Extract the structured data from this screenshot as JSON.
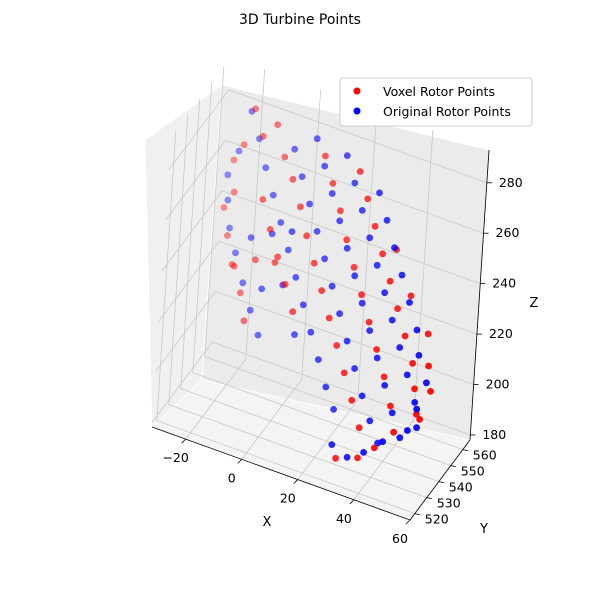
{
  "chart_data": {
    "type": "scatter",
    "projection": "3d",
    "title": "3D Turbine Points",
    "xlabel": "X",
    "ylabel": "Y",
    "zlabel": "Z",
    "x_ticks": [
      -20,
      0,
      20,
      40,
      60
    ],
    "y_ticks": [
      520,
      530,
      540,
      550,
      560
    ],
    "z_ticks": [
      180,
      200,
      220,
      240,
      260,
      280
    ],
    "xlim": [
      -32,
      60
    ],
    "ylim": [
      516,
      566
    ],
    "zlim": [
      178,
      293
    ],
    "grid": true,
    "legend_position": "upper-right",
    "series": [
      {
        "name": "Voxel Rotor Points",
        "color": "#ff0000",
        "points": [
          [
            -18,
            555,
            285
          ],
          [
            -14,
            553,
            277
          ],
          [
            -22,
            557,
            268
          ],
          [
            -26,
            559,
            259
          ],
          [
            -24,
            556,
            249
          ],
          [
            -28,
            558,
            240
          ],
          [
            -25,
            555,
            232
          ],
          [
            -22,
            553,
            223
          ],
          [
            -18,
            552,
            214
          ],
          [
            -15,
            549,
            206
          ],
          [
            -10,
            546,
            258
          ],
          [
            -6,
            544,
            249
          ],
          [
            -2,
            542,
            241
          ],
          [
            2,
            540,
            233
          ],
          [
            6,
            538,
            225
          ],
          [
            0,
            546,
            270
          ],
          [
            4,
            544,
            262
          ],
          [
            8,
            541,
            254
          ],
          [
            12,
            539,
            246
          ],
          [
            16,
            537,
            238
          ],
          [
            20,
            535,
            230
          ],
          [
            24,
            533,
            222
          ],
          [
            28,
            531,
            214
          ],
          [
            32,
            529,
            206
          ],
          [
            36,
            527,
            198
          ],
          [
            10,
            548,
            282
          ],
          [
            14,
            546,
            274
          ],
          [
            18,
            544,
            266
          ],
          [
            22,
            541,
            258
          ],
          [
            26,
            539,
            250
          ],
          [
            30,
            537,
            242
          ],
          [
            34,
            535,
            234
          ],
          [
            38,
            533,
            226
          ],
          [
            42,
            531,
            218
          ],
          [
            46,
            528,
            210
          ],
          [
            24,
            544,
            284
          ],
          [
            28,
            542,
            276
          ],
          [
            32,
            540,
            268
          ],
          [
            36,
            538,
            260
          ],
          [
            40,
            536,
            252
          ],
          [
            44,
            534,
            244
          ],
          [
            48,
            532,
            236
          ],
          [
            52,
            530,
            228
          ],
          [
            54,
            528,
            220
          ],
          [
            56,
            526,
            212
          ],
          [
            40,
            540,
            262
          ],
          [
            48,
            535,
            250
          ],
          [
            56,
            532,
            240
          ],
          [
            58,
            529,
            230
          ],
          [
            60,
            527,
            222
          ],
          [
            58,
            524,
            212
          ],
          [
            50,
            522,
            205
          ],
          [
            44,
            521,
            197
          ],
          [
            38,
            522,
            190
          ],
          [
            30,
            523,
            186
          ],
          [
            -6,
            553,
            272
          ],
          [
            -10,
            555,
            282
          ],
          [
            -20,
            550,
            225
          ],
          [
            -12,
            548,
            232
          ],
          [
            -4,
            545,
            236
          ]
        ]
      },
      {
        "name": "Original Rotor Points",
        "color": "#0000ff",
        "points": [
          [
            -20,
            557,
            282
          ],
          [
            -16,
            555,
            274
          ],
          [
            -24,
            558,
            264
          ],
          [
            -27,
            557,
            254
          ],
          [
            -26,
            556,
            245
          ],
          [
            -24,
            554,
            236
          ],
          [
            -21,
            553,
            228
          ],
          [
            -17,
            551,
            219
          ],
          [
            -13,
            549,
            211
          ],
          [
            -9,
            547,
            204
          ],
          [
            -12,
            552,
            266
          ],
          [
            -8,
            550,
            258
          ],
          [
            -4,
            548,
            250
          ],
          [
            0,
            546,
            242
          ],
          [
            4,
            544,
            234
          ],
          [
            8,
            542,
            226
          ],
          [
            12,
            540,
            218
          ],
          [
            16,
            538,
            210
          ],
          [
            20,
            536,
            202
          ],
          [
            24,
            534,
            196
          ],
          [
            -2,
            551,
            278
          ],
          [
            2,
            549,
            270
          ],
          [
            6,
            547,
            262
          ],
          [
            10,
            545,
            254
          ],
          [
            14,
            543,
            246
          ],
          [
            18,
            541,
            238
          ],
          [
            22,
            539,
            230
          ],
          [
            26,
            537,
            222
          ],
          [
            30,
            535,
            214
          ],
          [
            34,
            533,
            206
          ],
          [
            38,
            531,
            199
          ],
          [
            42,
            529,
            193
          ],
          [
            6,
            550,
            286
          ],
          [
            10,
            548,
            278
          ],
          [
            14,
            546,
            270
          ],
          [
            18,
            544,
            262
          ],
          [
            22,
            542,
            254
          ],
          [
            26,
            540,
            246
          ],
          [
            30,
            538,
            238
          ],
          [
            34,
            536,
            230
          ],
          [
            38,
            534,
            222
          ],
          [
            42,
            532,
            214
          ],
          [
            46,
            530,
            206
          ],
          [
            50,
            528,
            199
          ],
          [
            18,
            547,
            286
          ],
          [
            22,
            545,
            278
          ],
          [
            26,
            543,
            270
          ],
          [
            30,
            541,
            262
          ],
          [
            34,
            539,
            254
          ],
          [
            38,
            537,
            246
          ],
          [
            42,
            535,
            238
          ],
          [
            46,
            533,
            230
          ],
          [
            50,
            531,
            222
          ],
          [
            54,
            529,
            214
          ],
          [
            56,
            527,
            206
          ],
          [
            32,
            542,
            280
          ],
          [
            36,
            540,
            272
          ],
          [
            40,
            538,
            264
          ],
          [
            44,
            536,
            256
          ],
          [
            48,
            534,
            248
          ],
          [
            52,
            532,
            240
          ],
          [
            54,
            530,
            232
          ],
          [
            58,
            528,
            224
          ],
          [
            56,
            526,
            214
          ],
          [
            54,
            524,
            206
          ],
          [
            46,
            523,
            199
          ],
          [
            40,
            522,
            193
          ],
          [
            34,
            523,
            188
          ],
          [
            28,
            524,
            190
          ],
          [
            -14,
            548,
            240
          ],
          [
            -6,
            546,
            246
          ],
          [
            2,
            543,
            252
          ],
          [
            -8,
            545,
            224
          ],
          [
            0,
            543,
            230
          ],
          [
            6,
            541,
            214
          ]
        ]
      }
    ]
  }
}
